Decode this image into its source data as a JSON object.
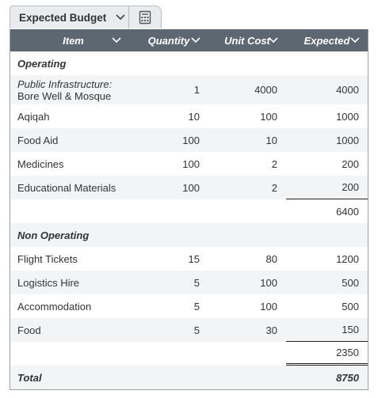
{
  "tabs": {
    "title": "Expected Budget"
  },
  "table": {
    "columns": [
      "Item",
      "Quantity",
      "Unit Cost",
      "Expected"
    ],
    "sections": [
      {
        "title": "Operating",
        "rows": [
          {
            "item_category": "Public Infrastructure:",
            "item": "Bore Well & Mosque",
            "quantity": 1,
            "unit_cost": 4000,
            "expected": 4000
          },
          {
            "item": "Aqiqah",
            "quantity": 10,
            "unit_cost": 100,
            "expected": 1000
          },
          {
            "item": "Food Aid",
            "quantity": 100,
            "unit_cost": 10,
            "expected": 1000
          },
          {
            "item": "Medicines",
            "quantity": 100,
            "unit_cost": 2,
            "expected": 200
          },
          {
            "item": "Educational Materials",
            "quantity": 100,
            "unit_cost": 2,
            "expected": 200
          }
        ],
        "subtotal": 6400
      },
      {
        "title": "Non Operating",
        "rows": [
          {
            "item": "Flight Tickets",
            "quantity": 15,
            "unit_cost": 80,
            "expected": 1200
          },
          {
            "item": "Logistics Hire",
            "quantity": 5,
            "unit_cost": 100,
            "expected": 500
          },
          {
            "item": "Accommodation",
            "quantity": 5,
            "unit_cost": 100,
            "expected": 500
          },
          {
            "item": "Food",
            "quantity": 5,
            "unit_cost": 30,
            "expected": 150
          }
        ],
        "subtotal": 2350
      }
    ],
    "total_label": "Total",
    "total": 8750
  }
}
